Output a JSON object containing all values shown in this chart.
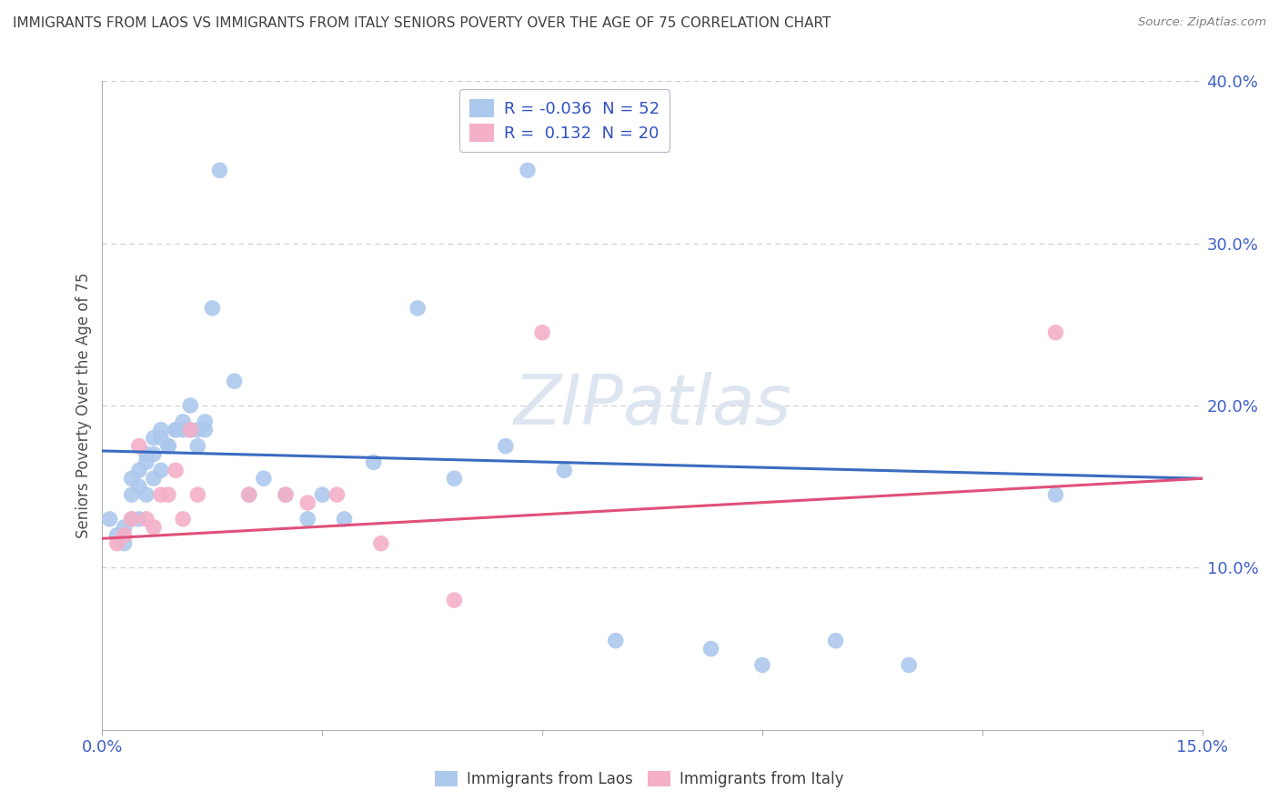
{
  "title": "IMMIGRANTS FROM LAOS VS IMMIGRANTS FROM ITALY SENIORS POVERTY OVER THE AGE OF 75 CORRELATION CHART",
  "source": "Source: ZipAtlas.com",
  "ylabel": "Seniors Poverty Over the Age of 75",
  "watermark": "ZIPatlas",
  "xlim": [
    0.0,
    0.15
  ],
  "ylim": [
    0.0,
    0.4
  ],
  "legend_entries": [
    {
      "label": "R = -0.036  N = 52",
      "color": "#adc8ed"
    },
    {
      "label": "R =  0.132  N = 20",
      "color": "#f4b0c8"
    }
  ],
  "series_laos": {
    "color": "#adc8ed",
    "trend_color": "#3a6bbf",
    "trend_x": [
      0.0,
      0.15
    ],
    "trend_y": [
      0.172,
      0.155
    ],
    "x": [
      0.001,
      0.002,
      0.003,
      0.003,
      0.004,
      0.004,
      0.004,
      0.005,
      0.005,
      0.005,
      0.006,
      0.006,
      0.006,
      0.007,
      0.007,
      0.007,
      0.008,
      0.008,
      0.008,
      0.009,
      0.009,
      0.01,
      0.01,
      0.011,
      0.011,
      0.012,
      0.012,
      0.013,
      0.013,
      0.014,
      0.014,
      0.015,
      0.016,
      0.018,
      0.02,
      0.022,
      0.025,
      0.028,
      0.03,
      0.033,
      0.037,
      0.043,
      0.048,
      0.055,
      0.058,
      0.063,
      0.07,
      0.083,
      0.09,
      0.1,
      0.11,
      0.13
    ],
    "y": [
      0.13,
      0.12,
      0.115,
      0.125,
      0.155,
      0.145,
      0.13,
      0.16,
      0.15,
      0.13,
      0.17,
      0.165,
      0.145,
      0.18,
      0.17,
      0.155,
      0.18,
      0.185,
      0.16,
      0.175,
      0.175,
      0.185,
      0.185,
      0.19,
      0.185,
      0.2,
      0.185,
      0.185,
      0.175,
      0.185,
      0.19,
      0.26,
      0.345,
      0.215,
      0.145,
      0.155,
      0.145,
      0.13,
      0.145,
      0.13,
      0.165,
      0.26,
      0.155,
      0.175,
      0.345,
      0.16,
      0.055,
      0.05,
      0.04,
      0.055,
      0.04,
      0.145
    ]
  },
  "series_italy": {
    "color": "#f4b0c8",
    "trend_color": "#e0507a",
    "trend_x": [
      0.0,
      0.15
    ],
    "trend_y": [
      0.118,
      0.155
    ],
    "x": [
      0.002,
      0.003,
      0.004,
      0.005,
      0.006,
      0.007,
      0.008,
      0.009,
      0.01,
      0.011,
      0.012,
      0.013,
      0.02,
      0.025,
      0.028,
      0.032,
      0.038,
      0.048,
      0.06,
      0.13
    ],
    "y": [
      0.115,
      0.12,
      0.13,
      0.175,
      0.13,
      0.125,
      0.145,
      0.145,
      0.16,
      0.13,
      0.185,
      0.145,
      0.145,
      0.145,
      0.14,
      0.145,
      0.115,
      0.08,
      0.245,
      0.245
    ]
  },
  "bg_color": "#ffffff",
  "grid_color": "#cccccc",
  "title_color": "#404040",
  "source_color": "#808080",
  "axis_label_color": "#505050",
  "tick_color": "#4060c8",
  "legend_text_color": "#3050c0",
  "watermark_color": "#dde5f0",
  "bottom_legend": [
    {
      "label": "Immigrants from Laos",
      "color": "#adc8ed"
    },
    {
      "label": "Immigrants from Italy",
      "color": "#f4b0c8"
    }
  ]
}
